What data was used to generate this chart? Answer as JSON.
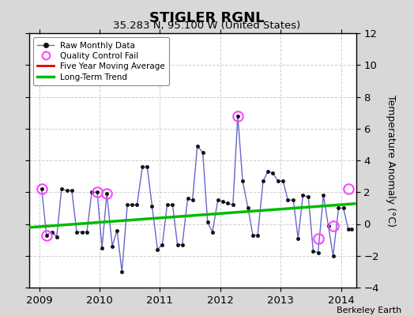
{
  "title": "STIGLER RGNL",
  "subtitle": "35.283 N, 95.100 W (United States)",
  "ylabel": "Temperature Anomaly (°C)",
  "credit": "Berkeley Earth",
  "ylim": [
    -4,
    12
  ],
  "yticks": [
    -4,
    -2,
    0,
    2,
    4,
    6,
    8,
    10,
    12
  ],
  "xlim": [
    2008.83,
    2014.25
  ],
  "xticks": [
    2009,
    2010,
    2011,
    2012,
    2013,
    2014
  ],
  "background_color": "#d8d8d8",
  "plot_bg": "#ffffff",
  "raw_x": [
    2009.04,
    2009.12,
    2009.21,
    2009.29,
    2009.37,
    2009.46,
    2009.54,
    2009.62,
    2009.71,
    2009.79,
    2009.87,
    2009.96,
    2010.04,
    2010.12,
    2010.21,
    2010.29,
    2010.37,
    2010.46,
    2010.54,
    2010.62,
    2010.71,
    2010.79,
    2010.87,
    2010.96,
    2011.04,
    2011.12,
    2011.21,
    2011.29,
    2011.37,
    2011.46,
    2011.54,
    2011.62,
    2011.71,
    2011.79,
    2011.87,
    2011.96,
    2012.04,
    2012.12,
    2012.21,
    2012.29,
    2012.37,
    2012.46,
    2012.54,
    2012.62,
    2012.71,
    2012.79,
    2012.87,
    2012.96,
    2013.04,
    2013.12,
    2013.21,
    2013.29,
    2013.37,
    2013.46,
    2013.54,
    2013.62,
    2013.71,
    2013.79,
    2013.87,
    2013.96,
    2014.04,
    2014.12
  ],
  "raw_y": [
    2.2,
    -0.7,
    -0.5,
    -0.8,
    2.2,
    2.1,
    2.1,
    -0.5,
    -0.5,
    -0.5,
    2.0,
    2.0,
    -1.5,
    1.9,
    -1.4,
    -0.4,
    -3.0,
    1.2,
    1.2,
    1.2,
    3.6,
    3.6,
    1.1,
    -1.6,
    -1.3,
    1.2,
    1.2,
    -1.3,
    -1.3,
    1.6,
    1.5,
    4.9,
    4.5,
    0.1,
    -0.5,
    1.5,
    1.4,
    1.3,
    1.2,
    6.8,
    2.7,
    1.0,
    -0.7,
    -0.7,
    2.7,
    3.3,
    3.2,
    2.7,
    2.7,
    1.5,
    1.5,
    -0.9,
    1.8,
    1.7,
    -1.7,
    -1.8,
    1.8,
    -0.1,
    -2.0,
    1.0,
    1.0,
    -0.3
  ],
  "qc_fail_x": [
    2009.04,
    2009.12,
    2009.96,
    2010.12,
    2012.29,
    2013.62,
    2013.87,
    2014.12
  ],
  "qc_fail_y": [
    2.2,
    -0.7,
    2.0,
    1.9,
    6.8,
    -0.9,
    -0.1,
    2.2
  ],
  "trend_x": [
    2008.83,
    2014.25
  ],
  "trend_y": [
    -0.22,
    1.28
  ],
  "isolated_x": [
    2014.17
  ],
  "isolated_y": [
    -0.3
  ],
  "raw_line_color": "#6666cc",
  "raw_marker_color": "#111111",
  "qc_marker_color": "#ff44ff",
  "trend_color": "#00bb00",
  "ma_color": "#dd0000"
}
